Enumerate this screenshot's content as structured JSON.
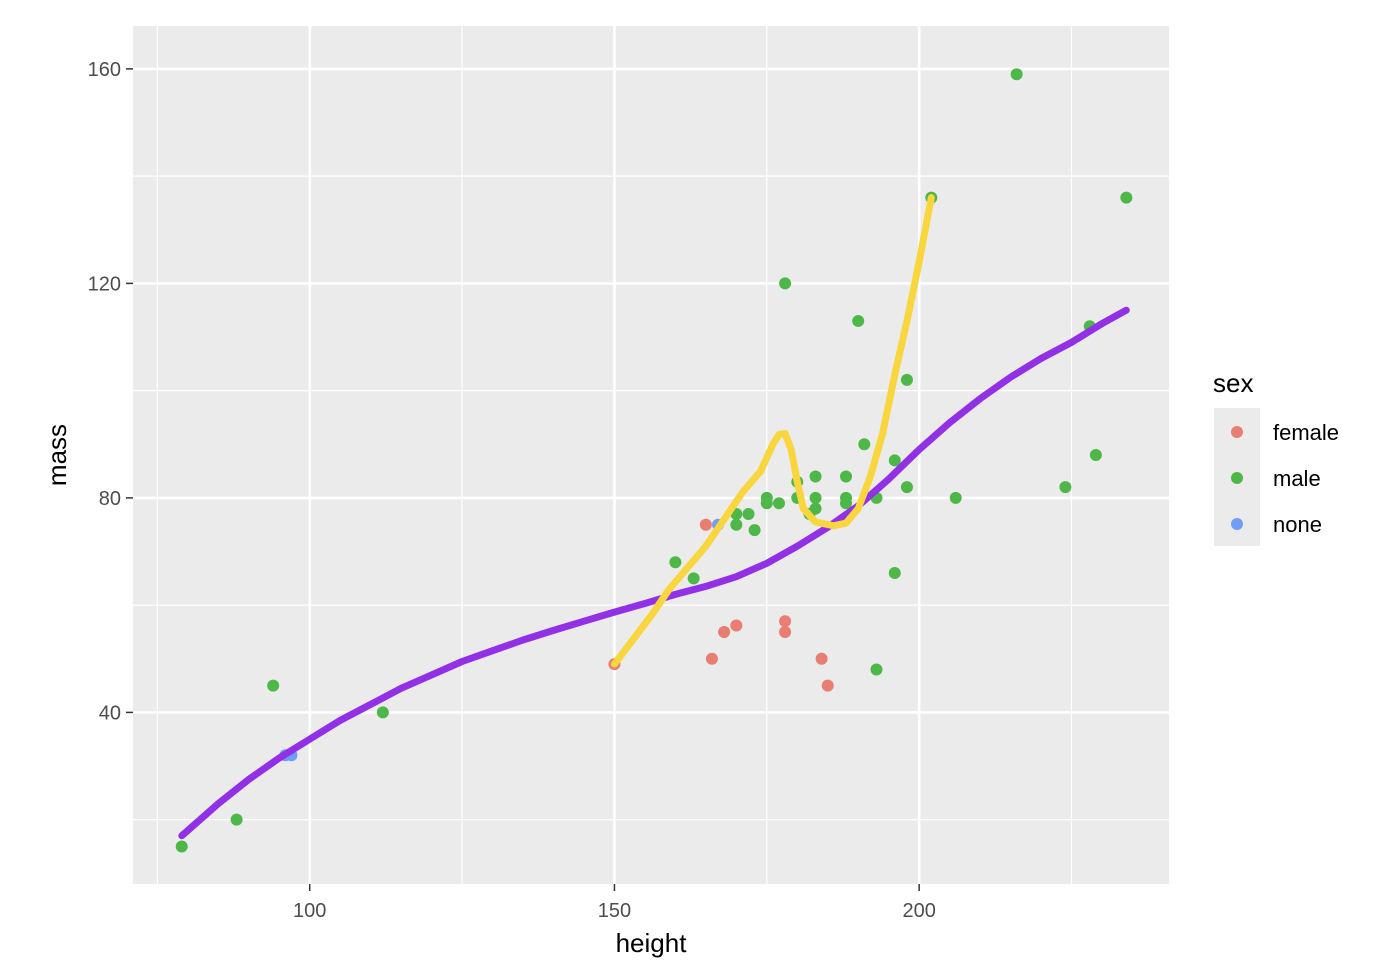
{
  "chart_data": {
    "type": "scatter",
    "title": "",
    "xlabel": "height",
    "ylabel": "mass",
    "xlim": [
      71,
      241
    ],
    "ylim": [
      8,
      168
    ],
    "x_major_ticks": [
      100,
      150,
      200
    ],
    "x_minor_ticks": [
      75,
      125,
      175,
      225
    ],
    "y_major_ticks": [
      40,
      80,
      120,
      160
    ],
    "y_minor_ticks": [
      20,
      60,
      100,
      140
    ],
    "grid": true,
    "legend": {
      "title": "sex",
      "placement": "right",
      "entries": [
        {
          "key": "female",
          "label": "female",
          "color": "#E87D72"
        },
        {
          "key": "male",
          "label": "male",
          "color": "#4DB848"
        },
        {
          "key": "none",
          "label": "none",
          "color": "#6F9EF8"
        }
      ]
    },
    "series": [
      {
        "key": "female",
        "color": "#E87D72",
        "points": [
          [
            150,
            49
          ],
          [
            165,
            75
          ],
          [
            166,
            50
          ],
          [
            168,
            55
          ],
          [
            170,
            56.2
          ],
          [
            178,
            57
          ],
          [
            178,
            55
          ],
          [
            184,
            50
          ],
          [
            185,
            45
          ]
        ]
      },
      {
        "key": "male",
        "color": "#4DB848",
        "points": [
          [
            79,
            15
          ],
          [
            88,
            20
          ],
          [
            94,
            45
          ],
          [
            112,
            40
          ],
          [
            160,
            68
          ],
          [
            163,
            65
          ],
          [
            170,
            77
          ],
          [
            170,
            75
          ],
          [
            172,
            77
          ],
          [
            173,
            74
          ],
          [
            175,
            80
          ],
          [
            175,
            79
          ],
          [
            177,
            79
          ],
          [
            178,
            120
          ],
          [
            180,
            83
          ],
          [
            180,
            80
          ],
          [
            182,
            77
          ],
          [
            183,
            84
          ],
          [
            183,
            80
          ],
          [
            183,
            78
          ],
          [
            188,
            84
          ],
          [
            188,
            80
          ],
          [
            188,
            79
          ],
          [
            190,
            113
          ],
          [
            191,
            90
          ],
          [
            193,
            80
          ],
          [
            193,
            48
          ],
          [
            196,
            87
          ],
          [
            196,
            66
          ],
          [
            198,
            102
          ],
          [
            198,
            82
          ],
          [
            202,
            136
          ],
          [
            206,
            80
          ],
          [
            216,
            159
          ],
          [
            224,
            82
          ],
          [
            228,
            112
          ],
          [
            229,
            88
          ],
          [
            234,
            136
          ]
        ]
      },
      {
        "key": "none",
        "color": "#6F9EF8",
        "points": [
          [
            96,
            32
          ],
          [
            97,
            32
          ],
          [
            167,
            75
          ]
        ]
      }
    ],
    "smooth_lines": [
      {
        "color": "#9130E6",
        "points": [
          [
            79,
            17
          ],
          [
            85,
            23
          ],
          [
            90,
            27.5
          ],
          [
            95,
            31.5
          ],
          [
            100,
            35
          ],
          [
            105,
            38.5
          ],
          [
            110,
            41.5
          ],
          [
            115,
            44.5
          ],
          [
            120,
            47
          ],
          [
            125,
            49.5
          ],
          [
            130,
            51.5
          ],
          [
            135,
            53.5
          ],
          [
            140,
            55.3
          ],
          [
            145,
            57
          ],
          [
            150,
            58.7
          ],
          [
            155,
            60.3
          ],
          [
            160,
            62
          ],
          [
            165,
            63.5
          ],
          [
            170,
            65.3
          ],
          [
            175,
            67.8
          ],
          [
            180,
            71
          ],
          [
            185,
            74.5
          ],
          [
            190,
            78.5
          ],
          [
            195,
            83.5
          ],
          [
            200,
            89
          ],
          [
            205,
            94
          ],
          [
            210,
            98.5
          ],
          [
            215,
            102.5
          ],
          [
            220,
            106
          ],
          [
            225,
            109
          ],
          [
            230,
            112.5
          ],
          [
            234,
            115
          ]
        ]
      },
      {
        "color": "#F9D53E",
        "points": [
          [
            150,
            49
          ],
          [
            153,
            53.5
          ],
          [
            156,
            58
          ],
          [
            159,
            63
          ],
          [
            162,
            67
          ],
          [
            165,
            71
          ],
          [
            168,
            76
          ],
          [
            171,
            81
          ],
          [
            174,
            85
          ],
          [
            176,
            90
          ],
          [
            177,
            91.8
          ],
          [
            178,
            92
          ],
          [
            179,
            89
          ],
          [
            180,
            83
          ],
          [
            181,
            78
          ],
          [
            183,
            75.5
          ],
          [
            186,
            74.8
          ],
          [
            188,
            75.3
          ],
          [
            190,
            78
          ],
          [
            192,
            84
          ],
          [
            194,
            92
          ],
          [
            196,
            103
          ],
          [
            198,
            113
          ],
          [
            200,
            124
          ],
          [
            202,
            136
          ]
        ]
      }
    ]
  }
}
